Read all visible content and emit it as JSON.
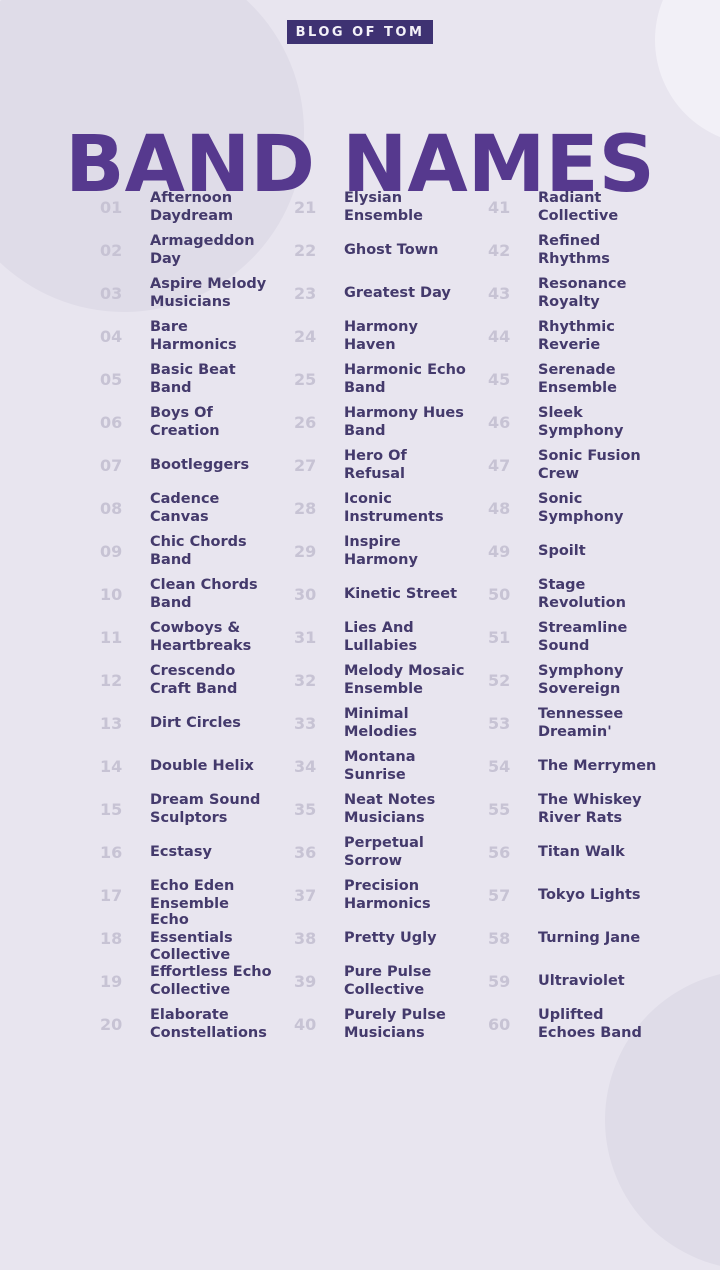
{
  "header": {
    "badge": "BLOG OF TOM",
    "title": "BAND NAMES"
  },
  "colors": {
    "background": "#e8e5ef",
    "accent_dark_purple": "#3e3272",
    "title_purple": "#56398e",
    "name_text": "#443a6c",
    "number_text": "#c7c3d4",
    "circle_shade": "#dfdce8",
    "circle_light": "#f2f0f7"
  },
  "list": {
    "columns": 3,
    "rows_per_column": 20,
    "items": [
      {
        "num": "01",
        "name": "Afternoon Daydream"
      },
      {
        "num": "02",
        "name": "Armageddon Day"
      },
      {
        "num": "03",
        "name": "Aspire Melody Musicians"
      },
      {
        "num": "04",
        "name": "Bare Harmonics"
      },
      {
        "num": "05",
        "name": "Basic Beat Band"
      },
      {
        "num": "06",
        "name": "Boys Of Creation"
      },
      {
        "num": "07",
        "name": "Bootleggers"
      },
      {
        "num": "08",
        "name": "Cadence Canvas"
      },
      {
        "num": "09",
        "name": "Chic Chords Band"
      },
      {
        "num": "10",
        "name": "Clean Chords Band"
      },
      {
        "num": "11",
        "name": "Cowboys & Heartbreaks"
      },
      {
        "num": "12",
        "name": "Crescendo Craft Band"
      },
      {
        "num": "13",
        "name": "Dirt Circles"
      },
      {
        "num": "14",
        "name": "Double Helix"
      },
      {
        "num": "15",
        "name": "Dream Sound Sculptors"
      },
      {
        "num": "16",
        "name": "Ecstasy"
      },
      {
        "num": "17",
        "name": "Echo Eden Ensemble"
      },
      {
        "num": "18",
        "name": "Echo Essentials Collective"
      },
      {
        "num": "19",
        "name": "Effortless Echo Collective"
      },
      {
        "num": "20",
        "name": "Elaborate Constellations"
      },
      {
        "num": "21",
        "name": "Elysian Ensemble"
      },
      {
        "num": "22",
        "name": "Ghost Town"
      },
      {
        "num": "23",
        "name": "Greatest Day"
      },
      {
        "num": "24",
        "name": "Harmony Haven"
      },
      {
        "num": "25",
        "name": "Harmonic Echo Band"
      },
      {
        "num": "26",
        "name": "Harmony Hues Band"
      },
      {
        "num": "27",
        "name": "Hero Of Refusal"
      },
      {
        "num": "28",
        "name": "Iconic Instruments"
      },
      {
        "num": "29",
        "name": "Inspire Harmony"
      },
      {
        "num": "30",
        "name": "Kinetic Street"
      },
      {
        "num": "31",
        "name": "Lies And Lullabies"
      },
      {
        "num": "32",
        "name": "Melody Mosaic Ensemble"
      },
      {
        "num": "33",
        "name": "Minimal Melodies"
      },
      {
        "num": "34",
        "name": "Montana Sunrise"
      },
      {
        "num": "35",
        "name": "Neat Notes Musicians"
      },
      {
        "num": "36",
        "name": "Perpetual Sorrow"
      },
      {
        "num": "37",
        "name": "Precision Harmonics"
      },
      {
        "num": "38",
        "name": "Pretty Ugly"
      },
      {
        "num": "39",
        "name": "Pure Pulse Collective"
      },
      {
        "num": "40",
        "name": "Purely Pulse Musicians"
      },
      {
        "num": "41",
        "name": "Radiant Collective"
      },
      {
        "num": "42",
        "name": "Refined Rhythms"
      },
      {
        "num": "43",
        "name": "Resonance Royalty"
      },
      {
        "num": "44",
        "name": "Rhythmic Reverie"
      },
      {
        "num": "45",
        "name": "Serenade Ensemble"
      },
      {
        "num": "46",
        "name": "Sleek Symphony"
      },
      {
        "num": "47",
        "name": "Sonic Fusion Crew"
      },
      {
        "num": "48",
        "name": "Sonic Symphony"
      },
      {
        "num": "49",
        "name": "Spoilt"
      },
      {
        "num": "50",
        "name": "Stage Revolution"
      },
      {
        "num": "51",
        "name": "Streamline Sound"
      },
      {
        "num": "52",
        "name": "Symphony Sovereign"
      },
      {
        "num": "53",
        "name": "Tennessee Dreamin'"
      },
      {
        "num": "54",
        "name": "The Merrymen"
      },
      {
        "num": "55",
        "name": "The Whiskey River Rats"
      },
      {
        "num": "56",
        "name": "Titan Walk"
      },
      {
        "num": "57",
        "name": "Tokyo Lights"
      },
      {
        "num": "58",
        "name": "Turning Jane"
      },
      {
        "num": "59",
        "name": "Ultraviolet"
      },
      {
        "num": "60",
        "name": "Uplifted Echoes Band"
      }
    ]
  }
}
